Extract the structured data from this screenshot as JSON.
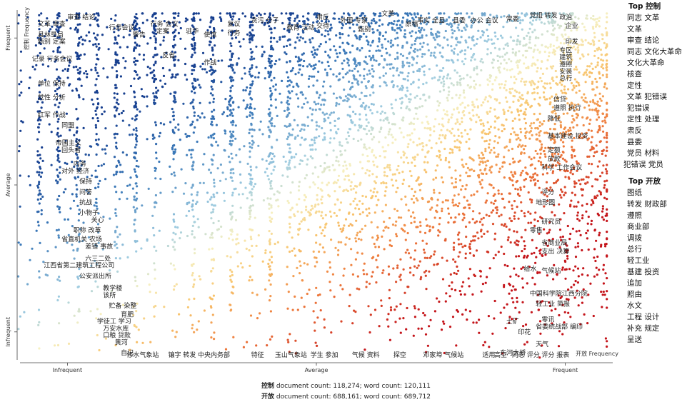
{
  "chart_data": {
    "type": "scatter",
    "title": "",
    "x_axis": {
      "label": "开放 Frequency",
      "ticks": [
        "Infrequent",
        "Average",
        "Frequent"
      ]
    },
    "y_axis": {
      "label": "控制 Frequency",
      "ticks": [
        "Infrequent",
        "Average",
        "Frequent"
      ]
    },
    "series": [
      {
        "color_low": "#1f4e9e",
        "color_mid": "#f5f0c8",
        "color_high": "#c81e1e"
      }
    ],
    "term_labels": [
      {
        "t": "文革 审查",
        "x": 0.03,
        "y": 0.96
      },
      {
        "t": "审查 结论",
        "x": 0.08,
        "y": 0.98
      },
      {
        "t": "县林垦局",
        "x": 0.03,
        "y": 0.93
      },
      {
        "t": "甄别 定案",
        "x": 0.03,
        "y": 0.91
      },
      {
        "t": "记录 行务会议",
        "x": 0.02,
        "y": 0.86
      },
      {
        "t": "单位 保持",
        "x": 0.03,
        "y": 0.79
      },
      {
        "t": "党性 分析",
        "x": 0.03,
        "y": 0.75
      },
      {
        "t": "红军 作战",
        "x": 0.03,
        "y": 0.7
      },
      {
        "t": "同盟",
        "x": 0.07,
        "y": 0.67
      },
      {
        "t": "帝国主义",
        "x": 0.06,
        "y": 0.62
      },
      {
        "t": "回头看",
        "x": 0.07,
        "y": 0.6
      },
      {
        "t": "内务",
        "x": 0.09,
        "y": 0.56
      },
      {
        "t": "对外 经济",
        "x": 0.07,
        "y": 0.54
      },
      {
        "t": "保持",
        "x": 0.1,
        "y": 0.51
      },
      {
        "t": "问答",
        "x": 0.1,
        "y": 0.48
      },
      {
        "t": "抗战",
        "x": 0.1,
        "y": 0.45
      },
      {
        "t": "小物子",
        "x": 0.1,
        "y": 0.42
      },
      {
        "t": "关心",
        "x": 0.12,
        "y": 0.4
      },
      {
        "t": "职称 改革",
        "x": 0.09,
        "y": 0.37
      },
      {
        "t": "省直机关 农场",
        "x": 0.07,
        "y": 0.345
      },
      {
        "t": "差错 事故",
        "x": 0.11,
        "y": 0.325
      },
      {
        "t": "六三二处",
        "x": 0.11,
        "y": 0.29
      },
      {
        "t": "江西省第二建筑工程公司",
        "x": 0.04,
        "y": 0.27
      },
      {
        "t": "公安派出所",
        "x": 0.1,
        "y": 0.24
      },
      {
        "t": "教学楼",
        "x": 0.14,
        "y": 0.205
      },
      {
        "t": "该所",
        "x": 0.14,
        "y": 0.185
      },
      {
        "t": "贮备 染整",
        "x": 0.15,
        "y": 0.155
      },
      {
        "t": "育肥",
        "x": 0.17,
        "y": 0.13
      },
      {
        "t": "学徒工 学习",
        "x": 0.13,
        "y": 0.11
      },
      {
        "t": "万安水库",
        "x": 0.14,
        "y": 0.09
      },
      {
        "t": "口粮 贷款",
        "x": 0.14,
        "y": 0.07
      },
      {
        "t": "黄河",
        "x": 0.16,
        "y": 0.05
      },
      {
        "t": "自记",
        "x": 0.17,
        "y": 0.02
      },
      {
        "t": "行务会议",
        "x": 0.15,
        "y": 0.95
      },
      {
        "t": "警告",
        "x": 0.19,
        "y": 0.93
      },
      {
        "t": "行务 会议",
        "x": 0.22,
        "y": 0.96
      },
      {
        "t": "定案",
        "x": 0.23,
        "y": 0.94
      },
      {
        "t": "反省",
        "x": 0.24,
        "y": 0.87
      },
      {
        "t": "驻华",
        "x": 0.28,
        "y": 0.94
      },
      {
        "t": "使馆",
        "x": 0.31,
        "y": 0.93
      },
      {
        "t": "作战",
        "x": 0.31,
        "y": 0.85
      },
      {
        "t": "复议",
        "x": 0.35,
        "y": 0.96
      },
      {
        "t": "行务",
        "x": 0.35,
        "y": 0.935
      },
      {
        "t": "贪污 分子",
        "x": 0.39,
        "y": 0.97
      },
      {
        "t": "教育 活动",
        "x": 0.45,
        "y": 0.95
      },
      {
        "t": "肃反",
        "x": 0.5,
        "y": 0.98
      },
      {
        "t": "交待",
        "x": 0.5,
        "y": 0.955
      },
      {
        "t": "外国 专家",
        "x": 0.54,
        "y": 0.97
      },
      {
        "t": "甄别",
        "x": 0.57,
        "y": 0.945
      },
      {
        "t": "文革",
        "x": 0.61,
        "y": 0.99
      },
      {
        "t": "原稿",
        "x": 0.65,
        "y": 0.96
      },
      {
        "t": "事实 全县",
        "x": 0.67,
        "y": 0.97
      },
      {
        "t": "县委",
        "x": 0.73,
        "y": 0.97
      },
      {
        "t": "办公 会议",
        "x": 0.76,
        "y": 0.97
      },
      {
        "t": "常委",
        "x": 0.82,
        "y": 0.975
      },
      {
        "t": "党组 转发",
        "x": 0.86,
        "y": 0.985
      },
      {
        "t": "政治",
        "x": 0.91,
        "y": 0.98
      },
      {
        "t": "企业",
        "x": 0.92,
        "y": 0.955
      },
      {
        "t": "印发",
        "x": 0.92,
        "y": 0.91
      },
      {
        "t": "专区",
        "x": 0.91,
        "y": 0.885
      },
      {
        "t": "建筑",
        "x": 0.91,
        "y": 0.865
      },
      {
        "t": "遵照",
        "x": 0.91,
        "y": 0.845
      },
      {
        "t": "安装",
        "x": 0.91,
        "y": 0.825
      },
      {
        "t": "总行",
        "x": 0.91,
        "y": 0.805
      },
      {
        "t": "信贷",
        "x": 0.9,
        "y": 0.745
      },
      {
        "t": "遵照 执行",
        "x": 0.9,
        "y": 0.72
      },
      {
        "t": "降低",
        "x": 0.89,
        "y": 0.69
      },
      {
        "t": "基本建设 投资",
        "x": 0.89,
        "y": 0.64
      },
      {
        "t": "定额",
        "x": 0.89,
        "y": 0.6
      },
      {
        "t": "放款",
        "x": 0.89,
        "y": 0.575
      },
      {
        "t": "科学 工作会议",
        "x": 0.88,
        "y": 0.55
      },
      {
        "t": "评分",
        "x": 0.88,
        "y": 0.48
      },
      {
        "t": "地形图",
        "x": 0.87,
        "y": 0.45
      },
      {
        "t": "研究员",
        "x": 0.88,
        "y": 0.395
      },
      {
        "t": "零售",
        "x": 0.86,
        "y": 0.37
      },
      {
        "t": "省商业局",
        "x": 0.88,
        "y": 0.335
      },
      {
        "t": "支出 决算",
        "x": 0.88,
        "y": 0.31
      },
      {
        "t": "给水",
        "x": 0.85,
        "y": 0.26
      },
      {
        "t": "气候站",
        "x": 0.88,
        "y": 0.255
      },
      {
        "t": "中国科学院江西分院",
        "x": 0.86,
        "y": 0.19
      },
      {
        "t": "轻工业 简报",
        "x": 0.87,
        "y": 0.16
      },
      {
        "t": "土矿",
        "x": 0.82,
        "y": 0.11
      },
      {
        "t": "零讯",
        "x": 0.88,
        "y": 0.115
      },
      {
        "t": "省委统战部 编印",
        "x": 0.87,
        "y": 0.095
      },
      {
        "t": "印花",
        "x": 0.84,
        "y": 0.08
      },
      {
        "t": "天气",
        "x": 0.87,
        "y": 0.045
      },
      {
        "t": "东河大桥",
        "x": 0.81,
        "y": 0.02
      },
      {
        "t": "同志 评分",
        "x": 0.83,
        "y": 0.0
      },
      {
        "t": "评分 报表",
        "x": 0.88,
        "y": 0.0
      },
      {
        "t": "适用",
        "x": 0.78,
        "y": -0.01
      },
      {
        "t": "高空",
        "x": 0.8,
        "y": 0.0
      },
      {
        "t": "邓家埠 气候站",
        "x": 0.68,
        "y": 0.0
      },
      {
        "t": "探空",
        "x": 0.63,
        "y": 0.0
      },
      {
        "t": "气候 资料",
        "x": 0.56,
        "y": 0.0
      },
      {
        "t": "学生 参加",
        "x": 0.49,
        "y": 0.0
      },
      {
        "t": "玉山气象站",
        "x": 0.43,
        "y": 0.0
      },
      {
        "t": "特征",
        "x": 0.39,
        "y": 0.0
      },
      {
        "t": "中央内务部",
        "x": 0.3,
        "y": 0.0
      },
      {
        "t": "镶字 转发",
        "x": 0.25,
        "y": 0.0
      },
      {
        "t": "修水气象站",
        "x": 0.18,
        "y": 0.0
      }
    ],
    "legend_lists": [
      {
        "title": "Top 控制",
        "items": [
          "同志 文革",
          "文革",
          "审查 结论",
          "同志 文化大革命",
          "文化大革命",
          "核查",
          "定性",
          "文革 犯错误",
          "犯错误",
          "定性 处理",
          "肃反",
          "县委",
          "党员 材料",
          "犯错误 党员"
        ]
      },
      {
        "title": "Top 开放",
        "items": [
          "图纸",
          "转发 财政部",
          "遵照",
          "商业部",
          "调拨",
          "总行",
          "轻工业",
          "基建 投资",
          "追加",
          "照由",
          "水文",
          "工程 设计",
          "补充 规定",
          "呈送"
        ]
      }
    ],
    "footer": [
      {
        "name": "控制",
        "text": " document count: 118,274; word count: 120,111"
      },
      {
        "name": "开放",
        "text": " document count: 688,161; word count: 689,712"
      }
    ]
  }
}
